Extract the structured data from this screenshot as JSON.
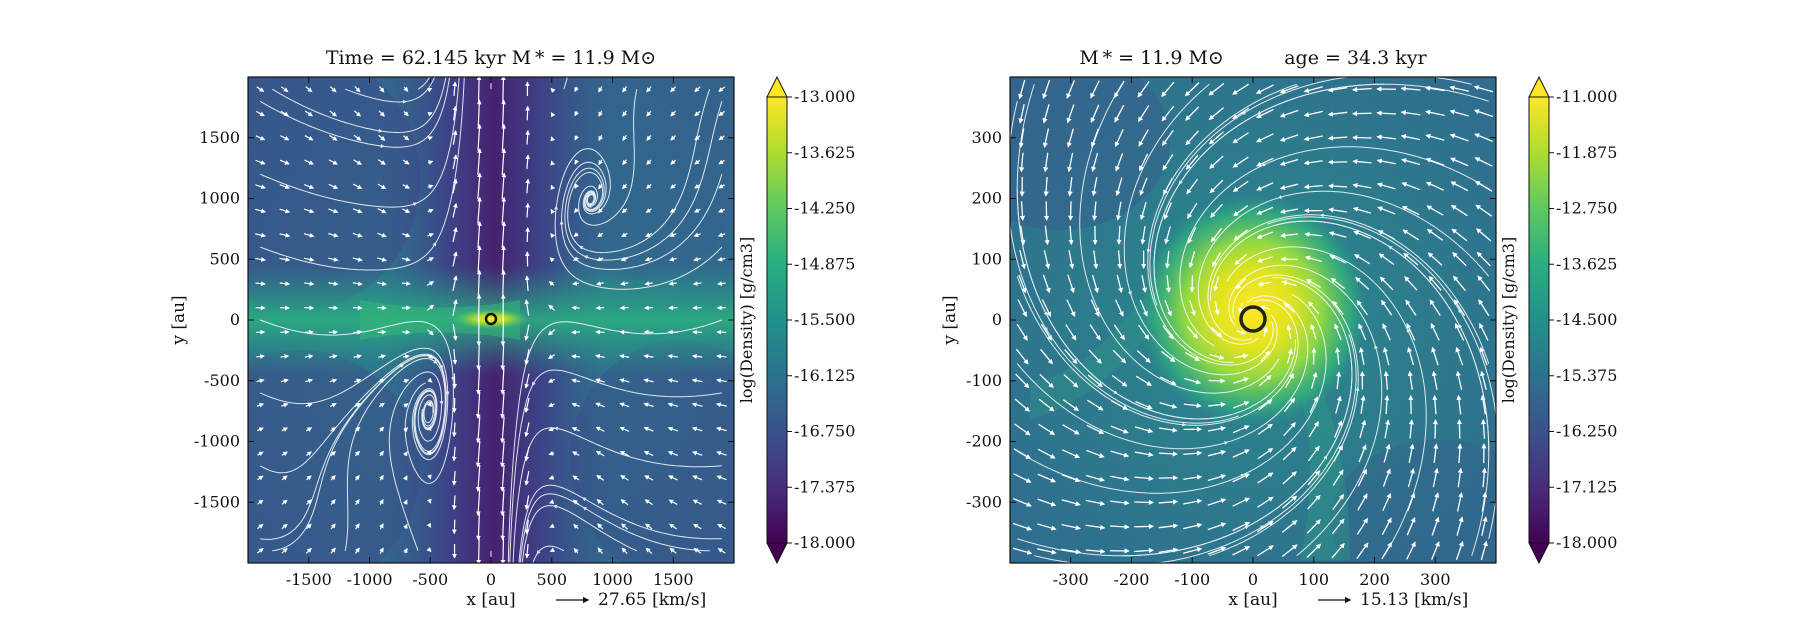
{
  "chart_data": [
    {
      "type": "heatmap",
      "title": "Time = 62.145 kyr    M * = 11.9 M⊙",
      "xlabel": "x [au]",
      "ylabel": "y [au]",
      "xlim": [
        -2000,
        2000
      ],
      "ylim": [
        -2000,
        2000
      ],
      "xticks": [
        -1500,
        -1000,
        -500,
        0,
        500,
        1000,
        1500
      ],
      "yticks": [
        -1500,
        -1000,
        -500,
        0,
        500,
        1000,
        1500
      ],
      "colorbar": {
        "label": "log(Density) [g/cm3]",
        "colormap": "viridis",
        "range": [
          -18.0,
          -13.0
        ],
        "ticks": [
          "-13.000",
          "-13.625",
          "-14.250",
          "-14.875",
          "-15.500",
          "-16.125",
          "-16.750",
          "-17.375",
          "-18.000"
        ]
      },
      "quiver_key": "27.65 [km/s]",
      "star_position": [
        0,
        0
      ],
      "features": [
        "dense equatorial disk along y = 0",
        "low-density bipolar outflow cavity along x = 0",
        "streamlines",
        "velocity vectors"
      ]
    },
    {
      "type": "heatmap",
      "title": "M * = 11.9 M⊙          age = 34.3 kyr",
      "xlabel": "x [au]",
      "ylabel": "y [au]",
      "xlim": [
        -400,
        400
      ],
      "ylim": [
        -400,
        400
      ],
      "xticks": [
        -300,
        -200,
        -100,
        0,
        100,
        200,
        300
      ],
      "yticks": [
        -300,
        -200,
        -100,
        0,
        100,
        200,
        300
      ],
      "colorbar": {
        "label": "log(Density) [g/cm3]",
        "colormap": "viridis",
        "range": [
          -18.0,
          -11.0
        ],
        "ticks": [
          "-11.000",
          "-11.875",
          "-12.750",
          "-13.625",
          "-14.500",
          "-15.375",
          "-16.250",
          "-17.125",
          "-18.000"
        ]
      },
      "quiver_key": "15.13 [km/s]",
      "star_position": [
        0,
        0
      ],
      "features": [
        "dense rotating disk around the star",
        "spiral inflow streams",
        "streamlines",
        "velocity vectors"
      ]
    }
  ]
}
